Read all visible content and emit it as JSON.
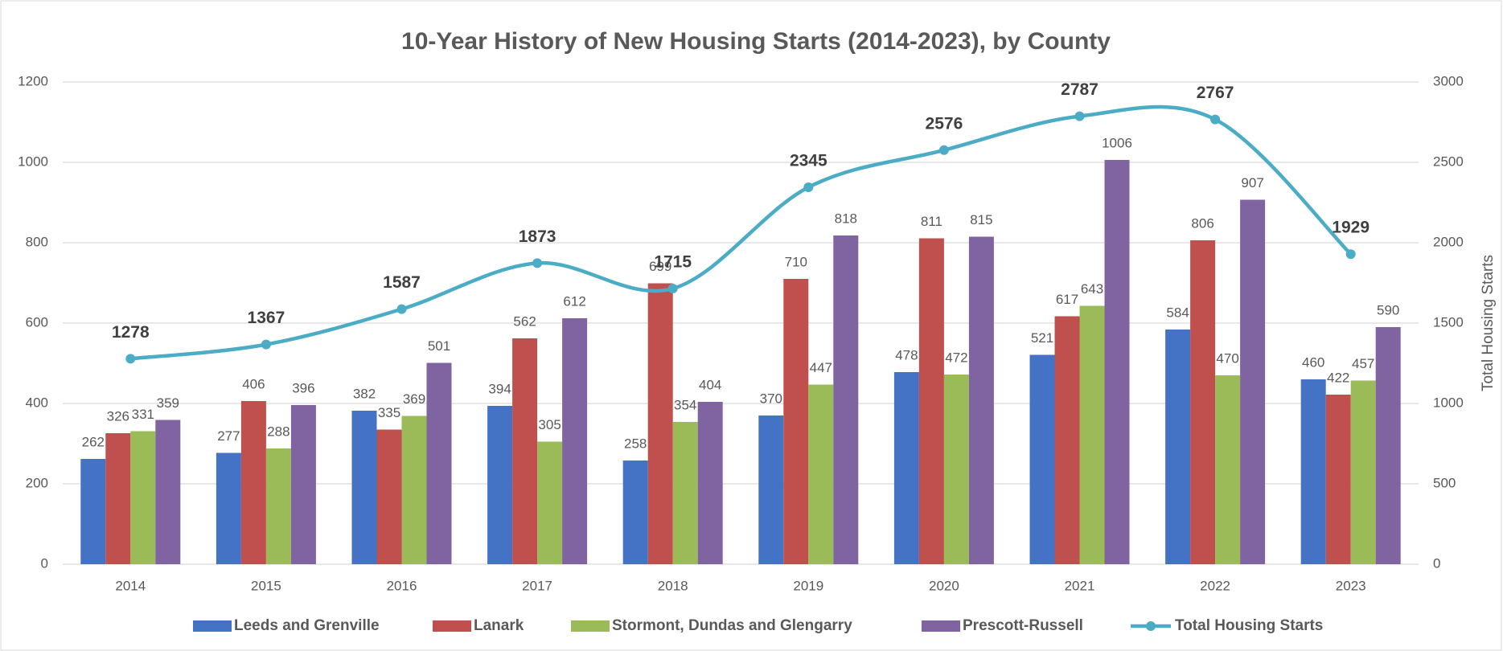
{
  "chart_data": {
    "type": "bar",
    "title": "10-Year History of New Housing Starts (2014-2023), by County",
    "y2label": "Total Housing Starts",
    "categories": [
      "2014",
      "2015",
      "2016",
      "2017",
      "2018",
      "2019",
      "2020",
      "2021",
      "2022",
      "2023"
    ],
    "series": [
      {
        "name": "Leeds and Grenville",
        "color": "#4472c4",
        "values": [
          262,
          277,
          382,
          394,
          258,
          370,
          478,
          521,
          584,
          460
        ]
      },
      {
        "name": "Lanark",
        "color": "#c0504d",
        "values": [
          326,
          406,
          335,
          562,
          699,
          710,
          811,
          617,
          806,
          422
        ]
      },
      {
        "name": "Stormont, Dundas and Glengarry",
        "color": "#9bbb59",
        "values": [
          331,
          288,
          369,
          305,
          354,
          447,
          472,
          643,
          470,
          457
        ]
      },
      {
        "name": "Prescott-Russell",
        "color": "#8064a2",
        "values": [
          359,
          396,
          501,
          612,
          404,
          818,
          815,
          1006,
          907,
          590
        ]
      },
      {
        "name": "Total Housing Starts",
        "color": "#4bacc6",
        "type": "line",
        "axis": "y2",
        "values": [
          1278,
          1367,
          1587,
          1873,
          1715,
          2345,
          2576,
          2787,
          2767,
          1929
        ]
      }
    ],
    "ylim": [
      0,
      1200
    ],
    "yticks": [
      0,
      200,
      400,
      600,
      800,
      1000,
      1200
    ],
    "y2lim": [
      0,
      3000
    ],
    "y2ticks": [
      0,
      500,
      1000,
      1500,
      2000,
      2500,
      3000
    ],
    "grid": true,
    "legend": "bottom"
  }
}
